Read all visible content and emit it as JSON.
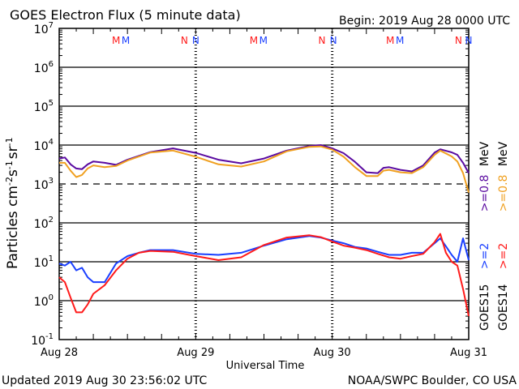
{
  "header": {
    "title": "GOES Electron Flux (5 minute data)",
    "begin": "Begin: 2019 Aug 28 0000 UTC"
  },
  "footer": {
    "updated": "Updated 2019 Aug 30 23:56:02 UTC",
    "credit": "NOAA/SWPC Boulder, CO USA"
  },
  "axes": {
    "ylabel_main": "Particles cm",
    "ylabel_sup1": "-2",
    "ylabel_mid1": "s",
    "ylabel_sup2": "-1",
    "ylabel_mid2": "sr",
    "ylabel_sup3": "-1",
    "xlabel": "Universal Time"
  },
  "legend": {
    "goes15": "GOES15",
    "goes14": "GOES14",
    "g15_2mev": ">=2",
    "g15_08mev": ">=0.8",
    "g14_2mev": ">=2",
    "g14_08mev": ">=0.8",
    "mev_a": "MeV",
    "mev_b": "MeV"
  },
  "markers": {
    "m": "M",
    "n": "N"
  },
  "colors": {
    "goes15_2mev": "#1a3fff",
    "goes14_2mev": "#ff1a1a",
    "goes15_08mev": "#5a0aa0",
    "goes14_08mev": "#f0a020"
  },
  "chart_data": {
    "type": "line",
    "yscale": "log",
    "ylim": [
      0.1,
      10000000
    ],
    "xlim": [
      0,
      72
    ],
    "x_unit": "hours since 2019 Aug 28 0000 UTC",
    "yticks": [
      "10",
      "10",
      "10",
      "10",
      "10",
      "10",
      "10",
      "10",
      "10"
    ],
    "ytick_exps": [
      "-1",
      "0",
      "1",
      "2",
      "3",
      "4",
      "5",
      "6",
      "7"
    ],
    "ytick_values": [
      0.1,
      1,
      10,
      100,
      1000,
      10000,
      100000,
      1000000,
      10000000
    ],
    "xticks": [
      "Aug 28",
      "Aug 29",
      "Aug 30",
      "Aug 31"
    ],
    "xtick_values": [
      0,
      24,
      48,
      72
    ],
    "threshold": 1000,
    "marker_times": {
      "M_red": [
        10.0,
        34.2,
        58.2
      ],
      "M_blue": [
        11.7,
        35.9,
        59.9
      ],
      "N_red": [
        22.0,
        46.2,
        70.2
      ],
      "N_blue": [
        24.0,
        48.2,
        72.0
      ]
    },
    "series": [
      {
        "name": ">=0.8 MeV GOES15",
        "x": [
          0,
          1,
          2,
          3,
          4,
          5,
          6,
          8,
          10,
          12,
          16,
          20,
          24,
          28,
          32,
          36,
          40,
          44,
          46,
          48,
          50,
          52,
          54,
          56,
          57,
          58,
          60,
          62,
          64,
          66,
          67,
          69,
          70,
          71,
          72
        ],
        "y": [
          4500,
          4800,
          3200,
          2500,
          2400,
          3200,
          3800,
          3500,
          3100,
          4200,
          6600,
          8200,
          6300,
          4200,
          3400,
          4500,
          7200,
          9500,
          10000,
          8200,
          6200,
          3700,
          2000,
          1900,
          2600,
          2700,
          2300,
          2100,
          3000,
          6400,
          7800,
          6500,
          5600,
          3500,
          1900
        ]
      },
      {
        "name": ">=0.8 MeV GOES14",
        "x": [
          0,
          1,
          2,
          3,
          4,
          5,
          6,
          8,
          10,
          12,
          16,
          20,
          24,
          28,
          32,
          36,
          40,
          44,
          46,
          48,
          50,
          52,
          54,
          56,
          57,
          58,
          60,
          62,
          64,
          66,
          67,
          69,
          70,
          71,
          72
        ],
        "y": [
          3500,
          3500,
          2200,
          1500,
          1700,
          2500,
          3000,
          2700,
          2900,
          4000,
          6400,
          7200,
          5000,
          3200,
          2800,
          3800,
          6900,
          9000,
          9200,
          7600,
          5000,
          2700,
          1600,
          1600,
          2200,
          2300,
          2000,
          1900,
          2700,
          5600,
          7200,
          5100,
          3800,
          1900,
          600
        ]
      },
      {
        "name": ">=2 MeV GOES15",
        "x": [
          0,
          1,
          2,
          3,
          4,
          5,
          6,
          8,
          10,
          12,
          14,
          16,
          20,
          24,
          28,
          32,
          36,
          40,
          44,
          46,
          48,
          50,
          52,
          54,
          56,
          58,
          60,
          62,
          64,
          66,
          67,
          68,
          69,
          70,
          71,
          72
        ],
        "y": [
          9,
          8,
          10,
          6,
          7,
          4,
          3,
          3,
          9,
          14,
          17,
          20,
          20,
          16,
          15,
          17,
          26,
          38,
          46,
          42,
          35,
          30,
          24,
          22,
          18,
          15,
          15,
          17,
          17,
          30,
          40,
          25,
          15,
          10,
          40,
          11
        ]
      },
      {
        "name": ">=2 MeV GOES14",
        "x": [
          0,
          1,
          2,
          3,
          4,
          5,
          6,
          8,
          10,
          12,
          14,
          16,
          20,
          24,
          28,
          32,
          36,
          40,
          44,
          46,
          48,
          50,
          52,
          54,
          56,
          58,
          60,
          62,
          64,
          66,
          67,
          68,
          69,
          70,
          71,
          72
        ],
        "y": [
          4,
          3,
          1.2,
          0.5,
          0.5,
          0.8,
          1.5,
          2.5,
          6,
          12,
          17,
          19,
          18,
          14,
          11,
          13,
          27,
          42,
          48,
          43,
          33,
          26,
          23,
          20,
          16,
          13,
          12,
          14,
          16,
          32,
          52,
          17,
          10,
          8,
          2,
          0.4
        ]
      }
    ]
  }
}
